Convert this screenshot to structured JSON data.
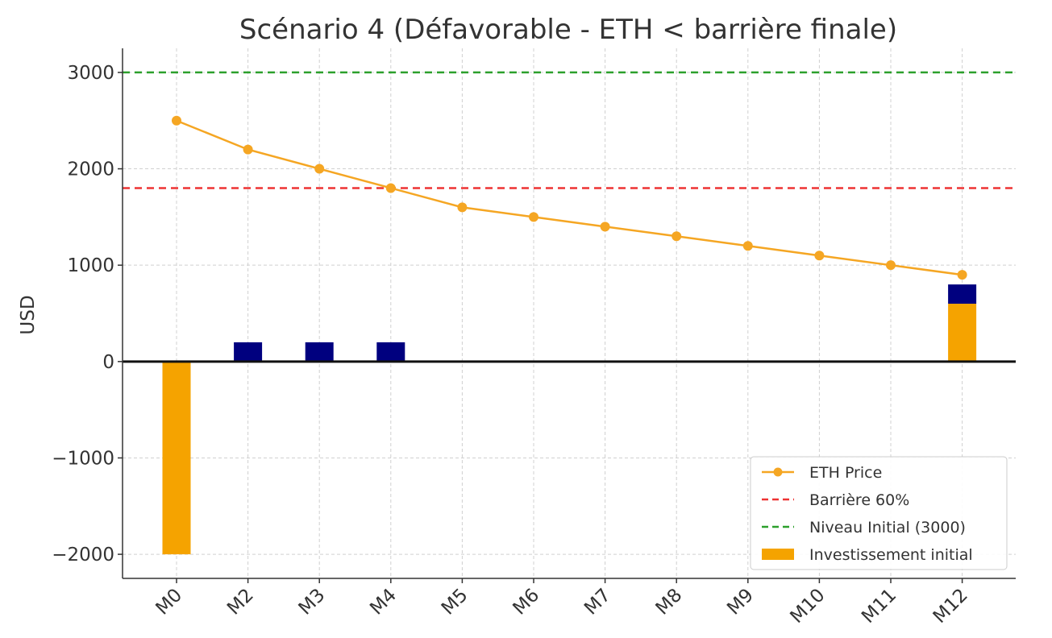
{
  "chart_data": {
    "type": "line",
    "title": "Scénario 4 (Défavorable - ETH < barrière finale)",
    "xlabel": "",
    "ylabel": "USD",
    "categories": [
      "M0",
      "M2",
      "M3",
      "M4",
      "M5",
      "M6",
      "M7",
      "M8",
      "M9",
      "M10",
      "M11",
      "M12"
    ],
    "ylim": [
      -2250,
      3250
    ],
    "yticks": [
      -2000,
      -1000,
      0,
      1000,
      2000,
      3000
    ],
    "ytick_labels": [
      "−2000",
      "−1000",
      "0",
      "1000",
      "2000",
      "3000"
    ],
    "grid": true,
    "legend_position": "lower-right",
    "series": [
      {
        "name": "ETH Price",
        "kind": "line-markers",
        "color": "#f5a623",
        "values": [
          2500,
          2200,
          2000,
          1800,
          1600,
          1500,
          1400,
          1300,
          1200,
          1100,
          1000,
          900
        ]
      }
    ],
    "reference_lines": [
      {
        "name": "Barrière 60%",
        "y": 1800,
        "color": "#ee3333",
        "style": "dashed"
      },
      {
        "name": "Niveau Initial (3000)",
        "y": 3000,
        "color": "#2ca02c",
        "style": "dashed"
      }
    ],
    "bars": [
      {
        "name": "Investissement initial",
        "category": "M0",
        "bottom": 0,
        "value": -2000,
        "color": "#f5a300"
      },
      {
        "category": "M12",
        "bottom": 0,
        "value": 600,
        "color": "#f5a300"
      }
    ],
    "coupon_bars": [
      {
        "category": "M2",
        "bottom": 0,
        "value": 200,
        "color": "#00007f"
      },
      {
        "category": "M3",
        "bottom": 0,
        "value": 200,
        "color": "#00007f"
      },
      {
        "category": "M4",
        "bottom": 0,
        "value": 200,
        "color": "#00007f"
      },
      {
        "category": "M12",
        "bottom": 600,
        "value": 200,
        "color": "#00007f"
      }
    ],
    "zero_line": {
      "y": 0,
      "color": "#111111"
    }
  }
}
